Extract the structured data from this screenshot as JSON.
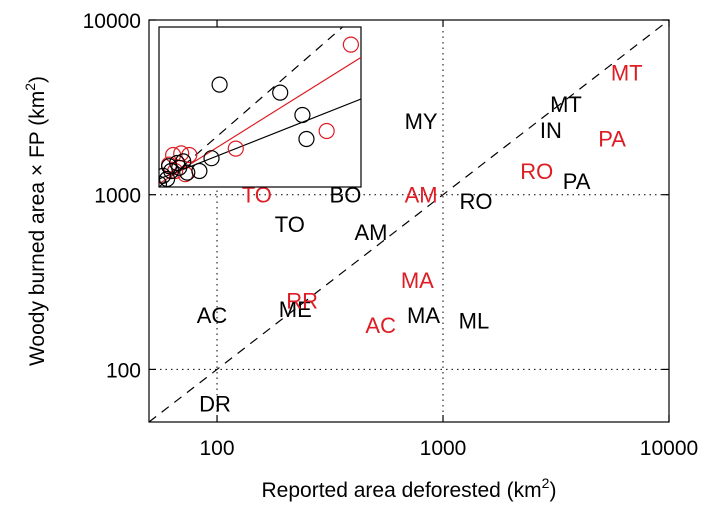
{
  "chart_data": {
    "type": "scatter",
    "scale": "log-log",
    "title": "",
    "xlabel_main": "Reported area deforested (km",
    "xlabel_sup": "2",
    "xlabel_tail": ")",
    "ylabel_main": "Woody burned area × FP (km",
    "ylabel_sup": "2",
    "ylabel_tail": ")",
    "xlim": [
      50,
      10000
    ],
    "ylim": [
      50,
      10000
    ],
    "x_ticks": [
      {
        "value": 100,
        "label": "100"
      },
      {
        "value": 1000,
        "label": "1000"
      },
      {
        "value": 10000,
        "label": "10000"
      }
    ],
    "y_ticks": [
      {
        "value": 100,
        "label": "100"
      },
      {
        "value": 1000,
        "label": "1000"
      },
      {
        "value": 10000,
        "label": "10000"
      }
    ],
    "grid": "dotted",
    "reference_lines": [
      {
        "style": "dashed",
        "color": "#000000",
        "from": [
          50,
          50
        ],
        "to": [
          10000,
          10000
        ]
      }
    ],
    "series": [
      {
        "color": "#000000",
        "points": [
          {
            "label": "MT",
            "x": 3500,
            "y": 3300
          },
          {
            "label": "IN",
            "x": 3000,
            "y": 2350
          },
          {
            "label": "MY",
            "x": 800,
            "y": 2650
          },
          {
            "label": "PA",
            "x": 3900,
            "y": 1200
          },
          {
            "label": "BO",
            "x": 370,
            "y": 1000
          },
          {
            "label": "RO",
            "x": 1400,
            "y": 920
          },
          {
            "label": "TO",
            "x": 210,
            "y": 680
          },
          {
            "label": "AM",
            "x": 480,
            "y": 610
          },
          {
            "label": "MA",
            "x": 820,
            "y": 205
          },
          {
            "label": "ML",
            "x": 1370,
            "y": 190
          },
          {
            "label": "ME",
            "x": 222,
            "y": 222
          },
          {
            "label": "AC",
            "x": 95,
            "y": 205
          },
          {
            "label": "DR",
            "x": 98,
            "y": 64
          }
        ]
      },
      {
        "color": "#dd1c24",
        "points": [
          {
            "label": "MT",
            "x": 6500,
            "y": 5000
          },
          {
            "label": "PA",
            "x": 5600,
            "y": 2100
          },
          {
            "label": "RO",
            "x": 2600,
            "y": 1370
          },
          {
            "label": "AM",
            "x": 800,
            "y": 1000
          },
          {
            "label": "TO",
            "x": 150,
            "y": 1000
          },
          {
            "label": "MA",
            "x": 770,
            "y": 325
          },
          {
            "label": "RR",
            "x": 238,
            "y": 248
          },
          {
            "label": "AC",
            "x": 530,
            "y": 180
          }
        ]
      }
    ]
  },
  "inset": {
    "black_circles": [
      [
        0.3,
        0.36
      ],
      [
        0.6,
        0.41
      ],
      [
        0.71,
        0.55
      ],
      [
        0.73,
        0.7
      ],
      [
        0.26,
        0.82
      ],
      [
        0.12,
        0.84
      ],
      [
        0.09,
        0.85
      ],
      [
        0.05,
        0.87
      ],
      [
        0.1,
        0.88
      ],
      [
        0.2,
        0.9
      ],
      [
        0.06,
        0.9
      ],
      [
        0.14,
        0.91
      ],
      [
        0.02,
        0.93
      ],
      [
        0.04,
        0.95
      ],
      [
        0.0,
        0.98
      ]
    ],
    "red_circles": [
      [
        0.95,
        0.11
      ],
      [
        0.83,
        0.65
      ],
      [
        0.38,
        0.76
      ],
      [
        0.07,
        0.8
      ],
      [
        0.11,
        0.79
      ],
      [
        0.15,
        0.8
      ],
      [
        0.05,
        0.86
      ],
      [
        0.08,
        0.9
      ],
      [
        0.13,
        0.92
      ]
    ],
    "dashed_line": [
      [
        0.0,
        1.0
      ],
      [
        1.0,
        -0.1
      ]
    ],
    "black_fit": [
      [
        0.0,
        0.95
      ],
      [
        1.0,
        0.45
      ]
    ],
    "red_fit": [
      [
        0.0,
        0.98
      ],
      [
        1.0,
        0.19
      ]
    ]
  }
}
